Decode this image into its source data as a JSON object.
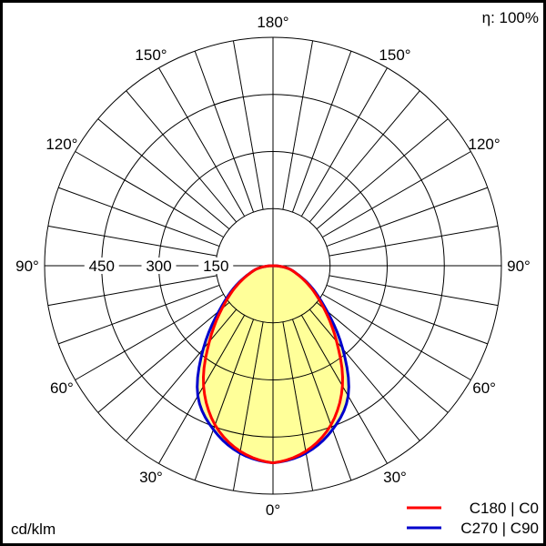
{
  "chart_data": {
    "type": "polar",
    "efficiency_label": "η: 100%",
    "unit_label": "cd/klm",
    "radial_ticks": [
      150,
      300,
      450
    ],
    "radial_tick_labels": [
      "150",
      "300",
      "450"
    ],
    "rmax": 600,
    "angle_labels": {
      "a180": "180°",
      "a150": "150°",
      "a120": "120°",
      "a90": "90°",
      "a60": "60°",
      "a30": "30°",
      "a0": "0°"
    },
    "grid": true,
    "legend_position": "bottom-right",
    "fill_color": "#ffff99",
    "angles": [
      0,
      10,
      20,
      30,
      40,
      50,
      60,
      70,
      80,
      90
    ],
    "series": [
      {
        "name": "C180 | C0",
        "color": "#ff0000",
        "values": [
          518,
          495,
          445,
          365,
          260,
          175,
          115,
          70,
          40,
          5
        ]
      },
      {
        "name": "C270 | C90",
        "color": "#0000cc",
        "values": [
          518,
          500,
          458,
          395,
          285,
          185,
          120,
          72,
          40,
          5
        ]
      }
    ]
  }
}
